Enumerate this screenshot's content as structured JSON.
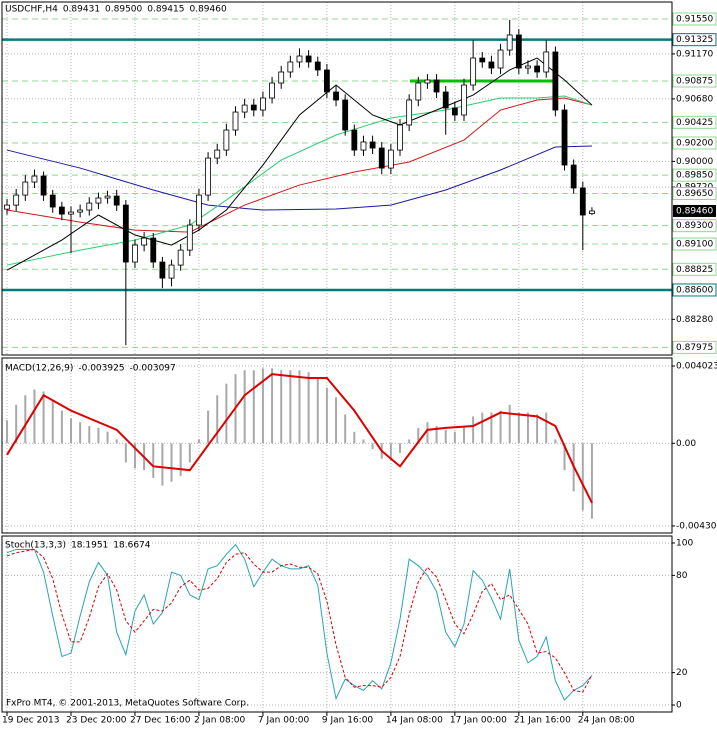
{
  "chart_data": [
    {
      "type": "candlestick",
      "title": "USDCHF,H4",
      "last_value_labels": {
        "open": "0.89431",
        "high": "0.89500",
        "low": "0.89415",
        "close": "0.89460"
      },
      "open": [
        0.8948,
        0.89524,
        0.89633,
        0.89775,
        0.8984,
        0.89633,
        0.89503,
        0.89426,
        0.89448,
        0.8947,
        0.89546,
        0.89601,
        0.89622,
        0.89524,
        0.88904,
        0.89089,
        0.89165,
        0.88904,
        0.88729,
        0.88871,
        0.89034,
        0.89307,
        0.89633,
        0.90036,
        0.90123,
        0.90341,
        0.90537,
        0.90613,
        0.90559,
        0.9069,
        0.90853,
        0.90973,
        0.91082,
        0.91147,
        0.91082,
        0.90995,
        0.90755,
        0.90668,
        0.90341,
        0.90123,
        0.90211,
        0.90145,
        0.89927,
        0.90123,
        0.90396,
        0.90668,
        0.90853,
        0.90886,
        0.90755,
        0.90581,
        0.90505,
        0.90831,
        0.91125,
        0.91082,
        0.91016,
        0.91212,
        0.91376,
        0.91016,
        0.91038,
        0.90973,
        0.91191,
        0.90559,
        0.8996,
        0.8971,
        0.89431
      ],
      "high": [
        0.8959,
        0.897,
        0.8985,
        0.8991,
        0.8989,
        0.8969,
        0.8956,
        0.8951,
        0.8953,
        0.8961,
        0.8966,
        0.8968,
        0.8969,
        0.8958,
        0.8915,
        0.8923,
        0.8922,
        0.8896,
        0.8893,
        0.891,
        0.8937,
        0.897,
        0.901,
        0.9019,
        0.9041,
        0.906,
        0.9068,
        0.9068,
        0.9076,
        0.9092,
        0.9104,
        0.9115,
        0.9123,
        0.9121,
        0.9114,
        0.9106,
        0.9082,
        0.9073,
        0.904,
        0.9028,
        0.9028,
        0.9021,
        0.9019,
        0.9046,
        0.9073,
        0.9092,
        0.9095,
        0.9095,
        0.9082,
        0.9065,
        0.909,
        0.9132,
        0.9119,
        0.9115,
        0.9128,
        0.91539,
        0.9144,
        0.911,
        0.911,
        0.9132,
        0.9125,
        0.9062,
        0.9002,
        0.8978,
        0.895
      ],
      "low": [
        0.8942,
        0.8946,
        0.8957,
        0.8971,
        0.8957,
        0.8944,
        0.8936,
        0.89,
        0.8939,
        0.8941,
        0.8948,
        0.8954,
        0.8946,
        0.88,
        0.8884,
        0.8902,
        0.8884,
        0.8862,
        0.8864,
        0.8881,
        0.8897,
        0.8924,
        0.8957,
        0.8997,
        0.9006,
        0.9028,
        0.9047,
        0.9049,
        0.9049,
        0.9063,
        0.9079,
        0.9091,
        0.9102,
        0.9102,
        0.9093,
        0.9069,
        0.906,
        0.9028,
        0.9006,
        0.9006,
        0.9008,
        0.8986,
        0.8986,
        0.9006,
        0.9033,
        0.906,
        0.9079,
        0.9069,
        0.9029,
        0.9044,
        0.9044,
        0.9077,
        0.9102,
        0.9095,
        0.9095,
        0.9115,
        0.9095,
        0.9095,
        0.9091,
        0.9091,
        0.9049,
        0.899,
        0.8965,
        0.89034,
        0.89415
      ],
      "close": [
        0.89524,
        0.89633,
        0.89775,
        0.8984,
        0.89633,
        0.89503,
        0.89426,
        0.89448,
        0.8947,
        0.89546,
        0.89601,
        0.89622,
        0.89524,
        0.88904,
        0.89089,
        0.89165,
        0.88904,
        0.88729,
        0.88871,
        0.89034,
        0.89307,
        0.89633,
        0.90036,
        0.90123,
        0.90341,
        0.90537,
        0.90613,
        0.90559,
        0.9069,
        0.90853,
        0.90973,
        0.91082,
        0.91147,
        0.91082,
        0.90995,
        0.90755,
        0.90668,
        0.90341,
        0.90123,
        0.90211,
        0.90145,
        0.89927,
        0.90123,
        0.90396,
        0.90668,
        0.90853,
        0.90886,
        0.90755,
        0.90581,
        0.90505,
        0.90831,
        0.91125,
        0.91082,
        0.91016,
        0.91212,
        0.91376,
        0.91016,
        0.91038,
        0.90973,
        0.91191,
        0.90559,
        0.8996,
        0.8971,
        0.89416,
        0.8946
      ],
      "up_color": "#ffffff",
      "down_color": "#000000",
      "outline_color": "#000000",
      "moving_averages": [
        {
          "color": "#1a1aa0",
          "x": [
            0,
            8,
            16,
            22,
            28,
            36,
            42,
            48,
            54,
            60,
            64
          ],
          "values": [
            0.90123,
            0.89927,
            0.89688,
            0.89524,
            0.8947,
            0.89481,
            0.89524,
            0.89688,
            0.89906,
            0.90156,
            0.90167
          ]
        },
        {
          "color": "#d01a1a",
          "x": [
            0,
            8,
            14,
            20,
            26,
            32,
            38,
            44,
            50,
            54,
            58,
            61,
            64
          ],
          "values": [
            0.8947,
            0.89339,
            0.89252,
            0.8923,
            0.89524,
            0.89742,
            0.89884,
            0.89993,
            0.90232,
            0.90559,
            0.90668,
            0.9069,
            0.90613
          ]
        },
        {
          "color": "#2ecc71",
          "x": [
            0,
            8,
            14,
            20,
            24,
            30,
            36,
            42,
            48,
            54,
            58,
            61,
            64
          ],
          "values": [
            0.88871,
            0.89034,
            0.89143,
            0.89307,
            0.89579,
            0.90014,
            0.90287,
            0.90472,
            0.90559,
            0.9069,
            0.9069,
            0.90711,
            0.90613
          ]
        },
        {
          "color": "#000000",
          "x": [
            0,
            6,
            10,
            14,
            18,
            21,
            24,
            28,
            32,
            36,
            40,
            43,
            47,
            51,
            55,
            58,
            61,
            64
          ],
          "values": [
            0.88816,
            0.89143,
            0.89416,
            0.89198,
            0.89089,
            0.89252,
            0.8947,
            0.8996,
            0.90505,
            0.90831,
            0.90505,
            0.90396,
            0.90559,
            0.90722,
            0.90995,
            0.91125,
            0.90886,
            0.90613
          ]
        }
      ],
      "levels": [
        {
          "value": 0.9155,
          "label": "0.91550",
          "color": "#8fd88f",
          "dashed": true
        },
        {
          "value": 0.91325,
          "label": "0.91325",
          "color": "#007b7b",
          "dashed": false
        },
        {
          "value": 0.90875,
          "label": "0.90875",
          "color": "#8fd88f",
          "dashed": true
        },
        {
          "value": 0.90425,
          "label": "0.90425",
          "color": "#8fd88f",
          "dashed": true
        },
        {
          "value": 0.902,
          "label": "0.90200",
          "color": "#8fd88f",
          "dashed": true
        },
        {
          "value": 0.8985,
          "label": "0.89850",
          "color": "#8fd88f",
          "dashed": true
        },
        {
          "value": 0.8965,
          "label": "0.89650",
          "color": "#8fd88f",
          "dashed": true
        },
        {
          "value": 0.893,
          "label": "0.89300",
          "color": "#8fd88f",
          "dashed": true
        },
        {
          "value": 0.891,
          "label": "0.89100",
          "color": "#8fd88f",
          "dashed": true
        },
        {
          "value": 0.88825,
          "label": "0.88825",
          "color": "#8fd88f",
          "dashed": true
        },
        {
          "value": 0.886,
          "label": "0.88600",
          "color": "#007b7b",
          "dashed": false
        },
        {
          "value": 0.87975,
          "label": "0.87975",
          "color": "#8fd88f",
          "dashed": true
        }
      ],
      "bid": {
        "value": 0.8946,
        "label": "0.89460",
        "color": "#000000"
      },
      "ylim": [
        0.87892,
        0.91735
      ],
      "yticks": [
        {
          "value": 0.9117,
          "label": "0.91170"
        },
        {
          "value": 0.9068,
          "label": "0.90680"
        },
        {
          "value": 0.9,
          "label": "0.90000"
        },
        {
          "value": 0.8972,
          "label": "0.89720"
        },
        {
          "value": 0.8828,
          "label": "0.88280"
        }
      ],
      "xlim": [
        -0.55,
        72.76
      ],
      "xticks": [
        {
          "value": 0,
          "label": "19 Dec 2013"
        },
        {
          "value": 7,
          "label": "23 Dec 20:00"
        },
        {
          "value": 14,
          "label": "27 Dec 16:00"
        },
        {
          "value": 21,
          "label": "2 Jan 08:00"
        },
        {
          "value": 28,
          "label": "7 Jan 00:00"
        },
        {
          "value": 35,
          "label": "9 Jan 16:00"
        },
        {
          "value": 42,
          "label": "14 Jan 08:00"
        },
        {
          "value": 49,
          "label": "17 Jan 00:00"
        },
        {
          "value": 56,
          "label": "21 Jan 16:00"
        },
        {
          "value": 63,
          "label": "24 Jan 08:00"
        }
      ],
      "grid": true
    },
    {
      "type": "macd",
      "title": "MACD(12,26,9)",
      "histogram": {
        "color": "#a8a8a8",
        "values": [
          0.0012,
          0.002,
          0.0025,
          0.0028,
          0.0027,
          0.0022,
          0.0017,
          0.0013,
          0.0011,
          0.0009,
          0.0008,
          0.0006,
          0.0002,
          -0.001,
          -0.0013,
          -0.0014,
          -0.0018,
          -0.0022,
          -0.002,
          -0.0017,
          -0.001,
          0.0002,
          0.0017,
          0.0025,
          0.0031,
          0.0036,
          0.0038,
          0.0038,
          0.0039,
          0.0039,
          0.0038,
          0.0038,
          0.0038,
          0.0037,
          0.0034,
          0.0029,
          0.0024,
          0.0015,
          0.0006,
          0.0002,
          -0.0003,
          -0.0008,
          -0.0009,
          -0.0005,
          0.0002,
          0.0008,
          0.0011,
          0.0009,
          0.0007,
          0.0006,
          0.0009,
          0.0014,
          0.0016,
          0.0016,
          0.0017,
          0.002,
          0.0016,
          0.0016,
          0.0015,
          0.0016,
          0.0002,
          -0.0014,
          -0.0025,
          -0.0035,
          -0.003925
        ]
      },
      "signal": {
        "color": "#dd0000",
        "x": [
          0,
          4,
          7,
          12,
          16,
          20,
          22,
          26,
          29,
          33,
          35,
          38,
          41,
          43,
          46,
          48,
          51,
          54,
          58,
          60,
          62,
          64
        ],
        "values": [
          -0.0006,
          0.0025,
          0.0017,
          0.0007,
          -0.0012,
          -0.0014,
          -0.0001,
          0.0025,
          0.0036,
          0.0034,
          0.0034,
          0.0017,
          -0.0004,
          -0.0012,
          0.0007,
          0.0008,
          0.0009,
          0.0016,
          0.0014,
          0.0009,
          -0.0012,
          -0.003097
        ]
      },
      "ylim": [
        -0.00467,
        0.00444
      ],
      "yticks": [
        0.004023,
        {
          "value": 0,
          "label": "0.00"
        },
        -0.004303
      ]
    },
    {
      "type": "stochastic",
      "title": "Stoch(13,3,3)",
      "main": {
        "color": "#2aa3b5",
        "values": [
          94,
          96,
          96,
          96,
          82,
          55,
          30,
          32,
          55,
          76,
          88,
          80,
          45,
          31,
          58,
          68,
          50,
          57,
          82,
          80,
          68,
          65,
          84,
          86,
          93,
          99,
          90,
          73,
          82,
          90,
          86,
          84,
          84,
          86,
          74,
          32,
          4,
          16,
          12,
          9,
          15,
          10,
          26,
          53,
          90,
          86,
          80,
          70,
          45,
          36,
          50,
          83,
          77,
          66,
          53,
          84,
          40,
          26,
          30,
          42,
          15,
          3,
          9,
          12,
          18.1951
        ]
      },
      "signal": {
        "color": "#dd0000",
        "values": [
          92,
          94,
          95,
          96,
          91,
          78,
          56,
          39,
          39,
          54,
          73,
          81,
          71,
          52,
          45,
          52,
          59,
          58,
          63,
          73,
          77,
          71,
          72,
          78,
          88,
          93,
          94,
          87,
          82,
          82,
          86,
          87,
          85,
          85,
          81,
          64,
          37,
          17,
          11,
          12,
          12,
          11,
          17,
          30,
          56,
          76,
          85,
          79,
          65,
          50,
          44,
          56,
          70,
          75,
          65,
          68,
          59,
          50,
          32,
          33,
          29,
          20,
          9,
          8,
          18.6674
        ]
      },
      "ylim": [
        -4.3,
        104.3
      ],
      "yticks": [
        100,
        80,
        20,
        0
      ]
    }
  ],
  "footer": {
    "copyright": "FxPro MT4, © 2001-2013, MetaQuotes Software Corp."
  }
}
